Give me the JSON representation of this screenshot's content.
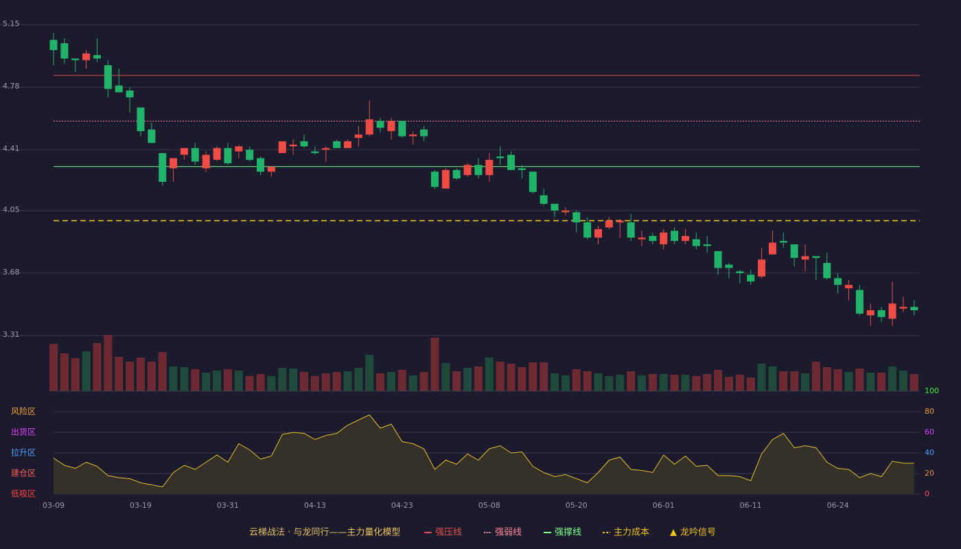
{
  "chart_data": [
    {
      "type": "candlestick",
      "categories": [
        "03-09",
        null,
        null,
        null,
        null,
        null,
        null,
        null,
        "03-19",
        null,
        null,
        null,
        null,
        null,
        null,
        null,
        "03-31",
        null,
        null,
        null,
        null,
        null,
        null,
        null,
        "04-13",
        null,
        null,
        null,
        null,
        null,
        null,
        null,
        "04-23",
        null,
        null,
        null,
        null,
        null,
        null,
        null,
        "05-08",
        null,
        null,
        null,
        null,
        null,
        null,
        null,
        "05-20",
        null,
        null,
        null,
        null,
        null,
        null,
        null,
        "06-01",
        null,
        null,
        null,
        null,
        null,
        null,
        null,
        "06-11",
        null,
        null,
        null,
        null,
        null,
        null,
        null,
        "06-24",
        null,
        null,
        null,
        null,
        null,
        null,
        null
      ],
      "open": [
        5.06,
        5.04,
        4.95,
        4.94,
        4.97,
        4.91,
        4.79,
        4.76,
        4.66,
        4.53,
        4.39,
        4.3,
        4.38,
        4.42,
        4.3,
        4.35,
        4.42,
        4.4,
        4.41,
        4.36,
        4.28,
        4.39,
        4.43,
        4.46,
        4.4,
        4.41,
        4.46,
        4.42,
        4.48,
        4.5,
        4.58,
        4.52,
        4.58,
        4.49,
        4.53,
        4.28,
        4.18,
        4.29,
        4.26,
        4.32,
        4.26,
        4.37,
        4.38,
        4.3,
        4.28,
        4.14,
        4.09,
        4.04,
        4.04,
        3.98,
        3.89,
        3.95,
        3.98,
        3.98,
        3.88,
        3.9,
        3.85,
        3.93,
        3.87,
        3.88,
        3.85,
        3.81,
        3.73,
        3.69,
        3.67,
        3.66,
        3.79,
        3.87,
        3.85,
        3.76,
        3.78,
        3.74,
        3.65,
        3.59,
        3.58,
        3.43,
        3.46,
        3.41,
        3.47,
        3.48
      ],
      "high": [
        5.1,
        5.07,
        4.95,
        5.0,
        5.07,
        4.94,
        4.89,
        4.78,
        4.66,
        4.57,
        4.39,
        4.36,
        4.42,
        4.45,
        4.4,
        4.43,
        4.45,
        4.44,
        4.43,
        4.37,
        4.31,
        4.46,
        4.47,
        4.5,
        4.43,
        4.43,
        4.47,
        4.47,
        4.55,
        4.7,
        4.6,
        4.6,
        4.58,
        4.52,
        4.55,
        4.29,
        4.3,
        4.3,
        4.33,
        4.36,
        4.39,
        4.43,
        4.4,
        4.32,
        4.28,
        4.18,
        4.09,
        4.07,
        4.05,
        4.01,
        3.96,
        4.01,
        4.0,
        4.03,
        3.93,
        3.92,
        3.94,
        3.95,
        3.94,
        3.92,
        3.9,
        3.81,
        3.74,
        3.7,
        3.7,
        3.83,
        3.93,
        3.92,
        3.85,
        3.85,
        3.78,
        3.8,
        3.68,
        3.64,
        3.61,
        3.5,
        3.48,
        3.63,
        3.54,
        3.52
      ],
      "low": [
        4.91,
        4.92,
        4.87,
        4.89,
        4.93,
        4.72,
        4.75,
        4.63,
        4.49,
        4.45,
        4.2,
        4.22,
        4.35,
        4.32,
        4.28,
        4.34,
        4.32,
        4.36,
        4.34,
        4.26,
        4.25,
        4.39,
        4.38,
        4.42,
        4.38,
        4.34,
        4.42,
        4.42,
        4.43,
        4.49,
        4.51,
        4.47,
        4.48,
        4.44,
        4.46,
        4.18,
        4.18,
        4.23,
        4.25,
        4.24,
        4.22,
        4.32,
        4.29,
        4.24,
        4.15,
        4.08,
        4.01,
        4.02,
        3.92,
        3.88,
        3.85,
        3.94,
        3.89,
        3.87,
        3.84,
        3.85,
        3.82,
        3.85,
        3.85,
        3.82,
        3.8,
        3.67,
        3.65,
        3.62,
        3.61,
        3.65,
        3.79,
        3.83,
        3.72,
        3.69,
        3.64,
        3.64,
        3.56,
        3.52,
        3.43,
        3.37,
        3.39,
        3.37,
        3.45,
        3.43
      ],
      "close": [
        5.0,
        4.95,
        4.94,
        4.98,
        4.95,
        4.77,
        4.75,
        4.72,
        4.52,
        4.45,
        4.22,
        4.36,
        4.42,
        4.34,
        4.38,
        4.42,
        4.33,
        4.43,
        4.35,
        4.28,
        4.31,
        4.46,
        4.44,
        4.43,
        4.39,
        4.42,
        4.42,
        4.46,
        4.5,
        4.59,
        4.54,
        4.58,
        4.49,
        4.5,
        4.49,
        4.19,
        4.29,
        4.24,
        4.32,
        4.26,
        4.35,
        4.36,
        4.29,
        4.29,
        4.16,
        4.09,
        4.05,
        4.05,
        3.98,
        3.89,
        3.94,
        3.99,
        3.99,
        3.89,
        3.89,
        3.87,
        3.92,
        3.87,
        3.9,
        3.84,
        3.84,
        3.71,
        3.71,
        3.68,
        3.63,
        3.76,
        3.86,
        3.86,
        3.77,
        3.78,
        3.77,
        3.65,
        3.61,
        3.61,
        3.44,
        3.46,
        3.42,
        3.5,
        3.48,
        3.46
      ],
      "up_color": "#ef4b45",
      "down_color": "#22b36a",
      "ylim": [
        3.31,
        5.15
      ],
      "yticks": [
        3.31,
        3.68,
        4.05,
        4.41,
        4.78,
        5.15
      ],
      "volume": {
        "ylim": [
          0,
          82
        ],
        "values": [
          69,
          55,
          48,
          58,
          70,
          82,
          50,
          43,
          49,
          43,
          57,
          36,
          35,
          32,
          27,
          30,
          32,
          30,
          22,
          25,
          22,
          34,
          33,
          28,
          22,
          26,
          28,
          29,
          34,
          53,
          26,
          28,
          31,
          23,
          28,
          78,
          41,
          29,
          34,
          36,
          49,
          43,
          40,
          35,
          42,
          42,
          26,
          23,
          32,
          29,
          26,
          22,
          24,
          29,
          23,
          25,
          25,
          24,
          24,
          22,
          25,
          31,
          21,
          24,
          20,
          40,
          36,
          29,
          29,
          26,
          43,
          35,
          32,
          28,
          33,
          27,
          27,
          36,
          30,
          25
        ],
        "colors": [
          "#6e2a33",
          "#6e2a33",
          "#6e2a33",
          "#1f4a3b",
          "#6e2a33",
          "#6e2a33",
          "#6e2a33",
          "#6e2a33",
          "#6e2a33",
          "#6e2a33",
          "#6e2a33",
          "#1f4a3b",
          "#1f4a3b",
          "#6e2a33",
          "#1f4a3b",
          "#1f4a3b",
          "#6e2a33",
          "#1f4a3b",
          "#6e2a33",
          "#6e2a33",
          "#1f4a3b",
          "#1f4a3b",
          "#1f4a3b",
          "#6e2a33",
          "#6e2a33",
          "#6e2a33",
          "#6e2a33",
          "#1f4a3b",
          "#1f4a3b",
          "#1f4a3b",
          "#6e2a33",
          "#1f4a3b",
          "#6e2a33",
          "#1f4a3b",
          "#6e2a33",
          "#6e2a33",
          "#1f4a3b",
          "#6e2a33",
          "#1f4a3b",
          "#6e2a33",
          "#1f4a3b",
          "#6e2a33",
          "#6e2a33",
          "#6e2a33",
          "#6e2a33",
          "#6e2a33",
          "#1f4a3b",
          "#1f4a3b",
          "#6e2a33",
          "#6e2a33",
          "#1f4a3b",
          "#1f4a3b",
          "#1f4a3b",
          "#6e2a33",
          "#1f4a3b",
          "#6e2a33",
          "#1f4a3b",
          "#6e2a33",
          "#1f4a3b",
          "#6e2a33",
          "#6e2a33",
          "#6e2a33",
          "#6e2a33",
          "#6e2a33",
          "#6e2a33",
          "#1f4a3b",
          "#1f4a3b",
          "#6e2a33",
          "#6e2a33",
          "#1f4a3b",
          "#6e2a33",
          "#6e2a33",
          "#6e2a33",
          "#1f4a3b",
          "#6e2a33",
          "#1f4a3b",
          "#6e2a33",
          "#1f4a3b",
          "#1f4a3b",
          "#6e2a33"
        ]
      },
      "lines": [
        {
          "name": "强压线",
          "value": 4.85,
          "color": "#e0504a",
          "style": "solid"
        },
        {
          "name": "强弱线",
          "value": 4.58,
          "color": "#ff8a9a",
          "style": "dotted"
        },
        {
          "name": "强撑线",
          "value": 4.31,
          "color": "#7dff8a",
          "style": "solid"
        },
        {
          "name": "主力成本",
          "value": 3.99,
          "color": "#f2c21b",
          "style": "dashed"
        }
      ],
      "signal": {
        "name": "龙吟信号",
        "color": "#f2c21b"
      },
      "legend_title": "云梯战法 · 与龙同行——主力量化模型"
    },
    {
      "type": "line",
      "ylim": [
        0,
        100
      ],
      "yticks": [
        0,
        20,
        40,
        60,
        80,
        100
      ],
      "ytick_colors": [
        "#ff4d4d",
        "#f08a3c",
        "#4d9fff",
        "#e040fb",
        "#f0a030",
        "#3cf03c"
      ],
      "zones": [
        {
          "value": 80,
          "label": "风险区",
          "color": "#f0a030"
        },
        {
          "value": 60,
          "label": "出货区",
          "color": "#e040fb"
        },
        {
          "value": 40,
          "label": "拉升区",
          "color": "#4d9fff"
        },
        {
          "value": 20,
          "label": "建仓区",
          "color": "#ff5a5a"
        },
        {
          "value": 0,
          "label": "低吸区",
          "color": "#ff4040"
        }
      ],
      "color": "#e6c229",
      "fill": "#3a3428",
      "values": [
        35,
        28,
        25,
        31,
        27,
        18,
        16,
        15,
        11,
        9,
        7,
        21,
        28,
        24,
        31,
        38,
        31,
        49,
        43,
        34,
        37,
        58,
        60,
        59,
        53,
        57,
        59,
        67,
        72,
        77,
        64,
        68,
        51,
        49,
        44,
        24,
        33,
        29,
        39,
        33,
        44,
        47,
        40,
        41,
        27,
        21,
        17,
        19,
        15,
        11,
        21,
        33,
        36,
        24,
        23,
        21,
        38,
        29,
        37,
        27,
        28,
        18,
        18,
        17,
        13,
        39,
        53,
        59,
        45,
        47,
        45,
        31,
        25,
        24,
        16,
        20,
        17,
        32,
        30,
        30
      ]
    }
  ]
}
